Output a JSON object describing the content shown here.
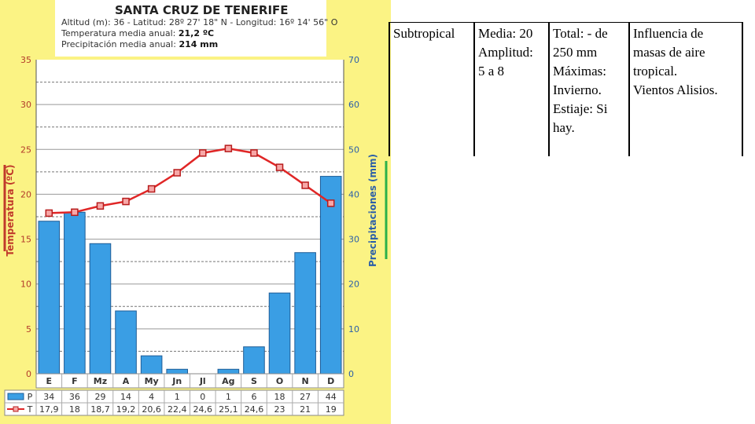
{
  "station": {
    "name": "SANTA CRUZ DE TENERIFE",
    "location_line": "Altitud (m): 36 - Latitud: 28º 27' 18\" N - Longitud: 16º 14' 56\" O",
    "temp_label": "Temperatura media anual:",
    "temp_value": "21,2 ºC",
    "precip_label": "Precipitación media anual:",
    "precip_value": "214 mm"
  },
  "chart_data": {
    "type": "bar",
    "categories": [
      "E",
      "F",
      "Mz",
      "A",
      "My",
      "Jn",
      "Jl",
      "Ag",
      "S",
      "O",
      "N",
      "D"
    ],
    "series": [
      {
        "name": "P",
        "type": "bar",
        "axis": "right",
        "values": [
          34,
          36,
          29,
          14,
          4,
          1,
          0,
          1,
          6,
          18,
          27,
          44
        ],
        "color": "#3a9ee4"
      },
      {
        "name": "T",
        "type": "line",
        "axis": "left",
        "values": [
          17.9,
          18,
          18.7,
          19.2,
          20.6,
          22.4,
          24.6,
          25.1,
          24.6,
          23,
          21,
          19
        ],
        "color": "#e02626"
      }
    ],
    "ylabel_left": "Temperatura (ºC)",
    "ylabel_right": "Precipitaciones (mm)",
    "ylim_left": [
      0,
      35
    ],
    "ylim_right": [
      0,
      70
    ],
    "yticks_left": [
      "0",
      "5",
      "10",
      "15",
      "20",
      "25",
      "30",
      "35"
    ],
    "yticks_right": [
      "0",
      "10",
      "20",
      "30",
      "40",
      "50",
      "60",
      "70"
    ],
    "table_rows": [
      {
        "label": "P",
        "values": [
          "34",
          "36",
          "29",
          "14",
          "4",
          "1",
          "0",
          "1",
          "6",
          "18",
          "27",
          "44"
        ]
      },
      {
        "label": "T",
        "values": [
          "17,9",
          "18",
          "18,7",
          "19,2",
          "20,6",
          "22,4",
          "24,6",
          "25,1",
          "24,6",
          "23",
          "21",
          "19"
        ]
      }
    ],
    "grid": true
  },
  "table": {
    "cells": [
      "Subtropical",
      "Media: 20\nAmplitud:\n5  a 8",
      "Total: - de\n250 mm\nMáximas:\nInvierno.\nEstiaje: Si\nhay.",
      "Influencia de\nmasas de aire\ntropical.\nVientos Alisios."
    ]
  }
}
